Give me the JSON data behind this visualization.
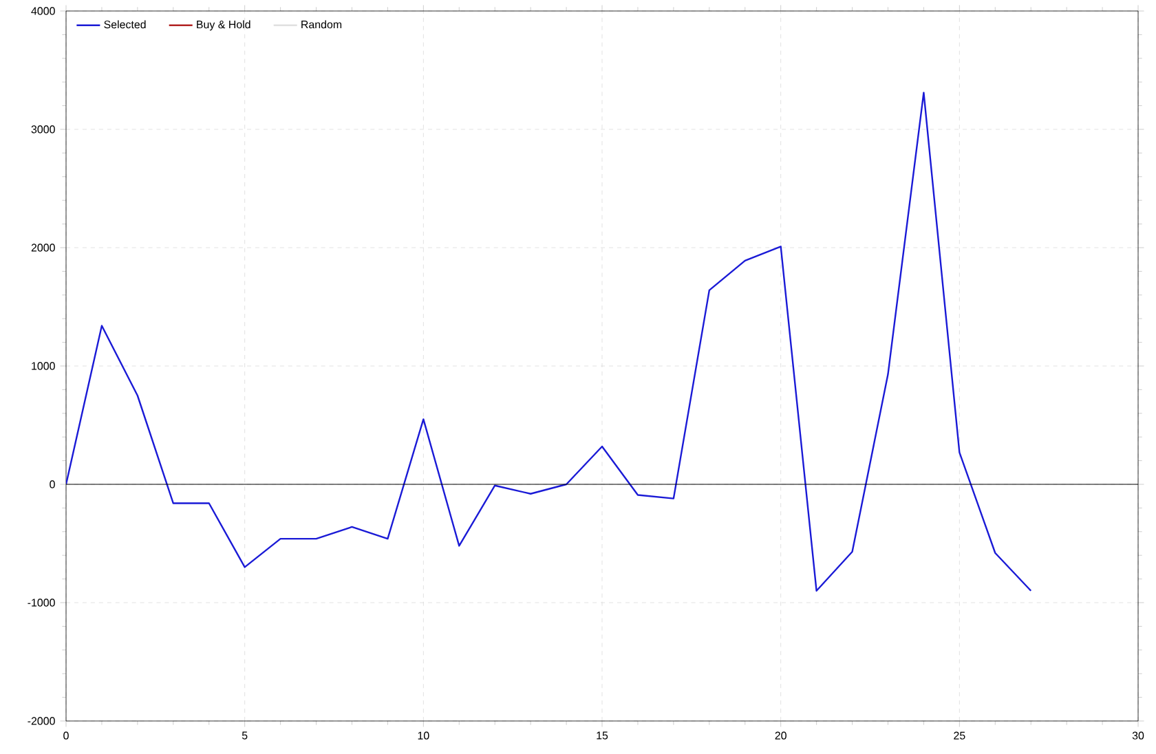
{
  "chart_data": {
    "type": "line",
    "x": [
      0,
      1,
      2,
      3,
      4,
      5,
      6,
      7,
      8,
      9,
      10,
      11,
      12,
      13,
      14,
      15,
      16,
      17,
      18,
      19,
      20,
      21,
      22,
      23,
      24,
      25,
      26,
      27
    ],
    "series": [
      {
        "name": "Selected",
        "color": "#1a1ad6",
        "values": [
          0,
          1340,
          750,
          -160,
          -160,
          -700,
          -460,
          -460,
          -360,
          -460,
          550,
          -520,
          -10,
          -80,
          0,
          320,
          -90,
          -120,
          1640,
          1890,
          2010,
          -900,
          -570,
          930,
          3310,
          270,
          -580,
          -900
        ]
      },
      {
        "name": "Buy & Hold",
        "color": "#b22222",
        "values": [
          null,
          null,
          null,
          null,
          null,
          null,
          null,
          null,
          null,
          null,
          null,
          null,
          null,
          null,
          null,
          null,
          null,
          null,
          null,
          null,
          null,
          null,
          null,
          null,
          null,
          null,
          null,
          null
        ]
      },
      {
        "name": "Random",
        "color": "#e0e0e0",
        "values": [
          null,
          null,
          null,
          null,
          null,
          null,
          null,
          null,
          null,
          null,
          null,
          null,
          null,
          null,
          null,
          null,
          null,
          null,
          null,
          null,
          null,
          null,
          null,
          null,
          null,
          null,
          null,
          null
        ]
      }
    ],
    "xlim": [
      0,
      30
    ],
    "xticks": [
      0,
      5,
      10,
      15,
      20,
      25,
      30
    ],
    "ylim": [
      -2000,
      4000
    ],
    "yticks": [
      -2000,
      -1000,
      0,
      1000,
      2000,
      3000,
      4000
    ],
    "ref_lines": [
      {
        "axis": "y",
        "value": 0,
        "color": "#000000"
      }
    ],
    "grid": true,
    "legend": "top left",
    "marker": "none",
    "line_style": "solid"
  }
}
